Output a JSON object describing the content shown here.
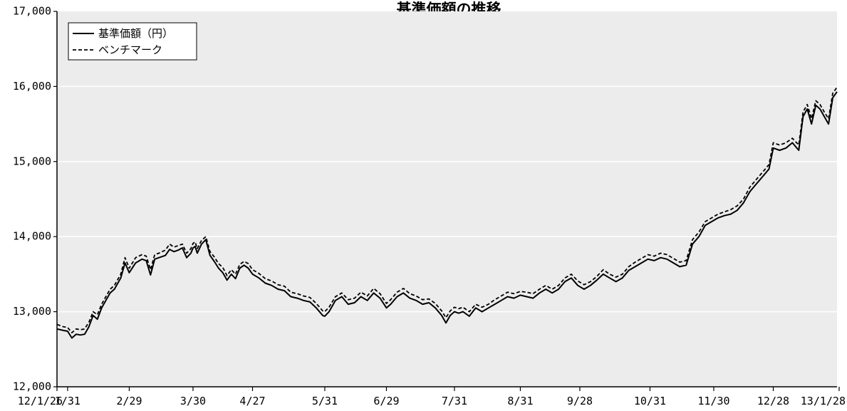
{
  "chart_data": {
    "type": "line",
    "title": "基準価額の推移",
    "xlabel": "",
    "ylabel": "",
    "ylim": [
      12000,
      17000
    ],
    "yticks": [
      "12,000",
      "13,000",
      "14,000",
      "15,000",
      "16,000",
      "17,000"
    ],
    "ytick_values": [
      12000,
      13000,
      14000,
      15000,
      16000,
      17000
    ],
    "xlim": [
      0,
      367
    ],
    "xticks": [
      {
        "label": "12/1/26",
        "day": 0
      },
      {
        "label": "1/31",
        "day": 5
      },
      {
        "label": "2/29",
        "day": 34
      },
      {
        "label": "3/30",
        "day": 64
      },
      {
        "label": "4/27",
        "day": 92
      },
      {
        "label": "5/31",
        "day": 126
      },
      {
        "label": "6/29",
        "day": 155
      },
      {
        "label": "7/31",
        "day": 187
      },
      {
        "label": "8/31",
        "day": 218
      },
      {
        "label": "9/28",
        "day": 246
      },
      {
        "label": "10/31",
        "day": 279
      },
      {
        "label": "11/30",
        "day": 309
      },
      {
        "label": "12/28",
        "day": 337
      },
      {
        "label": "13/1/28",
        "day": 368
      }
    ],
    "grid": true,
    "legend_position": "top-left",
    "background_color": "#ececec",
    "series": [
      {
        "name": "基準価額（円）",
        "style": "solid",
        "color": "#000000",
        "x": [
          0,
          3,
          5,
          7,
          9,
          11,
          13,
          15,
          17,
          19,
          21,
          23,
          25,
          27,
          30,
          32,
          34,
          37,
          40,
          42,
          44,
          46,
          48,
          51,
          53,
          55,
          57,
          59,
          61,
          63,
          64,
          65,
          66,
          68,
          70,
          72,
          74,
          76,
          78,
          80,
          82,
          84,
          86,
          88,
          90,
          92,
          95,
          98,
          101,
          104,
          107,
          110,
          113,
          116,
          119,
          122,
          125,
          126,
          128,
          131,
          134,
          137,
          140,
          143,
          146,
          149,
          152,
          155,
          157,
          160,
          163,
          166,
          169,
          172,
          175,
          178,
          181,
          183,
          185,
          187,
          189,
          191,
          194,
          197,
          200,
          203,
          206,
          209,
          212,
          215,
          218,
          221,
          224,
          227,
          230,
          233,
          236,
          239,
          242,
          245,
          248,
          251,
          254,
          257,
          260,
          263,
          266,
          269,
          272,
          275,
          278,
          281,
          284,
          287,
          290,
          293,
          296,
          299,
          302,
          305,
          308,
          311,
          314,
          317,
          320,
          323,
          326,
          329,
          332,
          335,
          337,
          340,
          343,
          346,
          349,
          351,
          353,
          355,
          357,
          359,
          361,
          363,
          365,
          367
        ],
        "y": [
          12770,
          12750,
          12740,
          12650,
          12700,
          12690,
          12700,
          12800,
          12950,
          12900,
          13050,
          13150,
          13250,
          13300,
          13450,
          13650,
          13520,
          13650,
          13700,
          13680,
          13490,
          13700,
          13720,
          13750,
          13830,
          13800,
          13820,
          13850,
          13720,
          13780,
          13850,
          13870,
          13780,
          13900,
          13960,
          13750,
          13670,
          13580,
          13520,
          13420,
          13500,
          13440,
          13580,
          13620,
          13580,
          13500,
          13450,
          13380,
          13350,
          13300,
          13280,
          13200,
          13180,
          13150,
          13130,
          13050,
          12950,
          12940,
          13000,
          13150,
          13200,
          13100,
          13120,
          13200,
          13150,
          13250,
          13180,
          13050,
          13100,
          13200,
          13250,
          13180,
          13150,
          13100,
          13120,
          13050,
          12950,
          12850,
          12950,
          13000,
          12980,
          13000,
          12940,
          13050,
          13000,
          13050,
          13100,
          13150,
          13200,
          13180,
          13220,
          13200,
          13180,
          13250,
          13300,
          13250,
          13300,
          13400,
          13450,
          13350,
          13300,
          13350,
          13420,
          13500,
          13450,
          13400,
          13450,
          13550,
          13600,
          13650,
          13700,
          13680,
          13720,
          13700,
          13650,
          13600,
          13620,
          13900,
          14000,
          14150,
          14200,
          14250,
          14280,
          14300,
          14350,
          14450,
          14600,
          14700,
          14800,
          14900,
          15180,
          15150,
          15180,
          15250,
          15150,
          15600,
          15700,
          15500,
          15750,
          15700,
          15600,
          15500,
          15850,
          15930
        ]
      },
      {
        "name": "ベンチマーク",
        "style": "dashed",
        "color": "#000000",
        "x": [
          0,
          3,
          5,
          7,
          9,
          11,
          13,
          15,
          17,
          19,
          21,
          23,
          25,
          27,
          30,
          32,
          34,
          37,
          40,
          42,
          44,
          46,
          48,
          51,
          53,
          55,
          57,
          59,
          61,
          63,
          64,
          65,
          66,
          68,
          70,
          72,
          74,
          76,
          78,
          80,
          82,
          84,
          86,
          88,
          90,
          92,
          95,
          98,
          101,
          104,
          107,
          110,
          113,
          116,
          119,
          122,
          125,
          126,
          128,
          131,
          134,
          137,
          140,
          143,
          146,
          149,
          152,
          155,
          157,
          160,
          163,
          166,
          169,
          172,
          175,
          178,
          181,
          183,
          185,
          187,
          189,
          191,
          194,
          197,
          200,
          203,
          206,
          209,
          212,
          215,
          218,
          221,
          224,
          227,
          230,
          233,
          236,
          239,
          242,
          245,
          248,
          251,
          254,
          257,
          260,
          263,
          266,
          269,
          272,
          275,
          278,
          281,
          284,
          287,
          290,
          293,
          296,
          299,
          302,
          305,
          308,
          311,
          314,
          317,
          320,
          323,
          326,
          329,
          332,
          335,
          337,
          340,
          343,
          346,
          349,
          351,
          353,
          355,
          357,
          359,
          361,
          363,
          365,
          367
        ],
        "y": [
          12830,
          12800,
          12790,
          12720,
          12770,
          12760,
          12770,
          12860,
          13000,
          12960,
          13100,
          13200,
          13300,
          13350,
          13500,
          13720,
          13580,
          13720,
          13760,
          13740,
          13560,
          13760,
          13780,
          13820,
          13900,
          13860,
          13880,
          13900,
          13780,
          13840,
          13910,
          13930,
          13840,
          13950,
          14000,
          13800,
          13730,
          13640,
          13590,
          13480,
          13560,
          13500,
          13630,
          13670,
          13640,
          13560,
          13510,
          13440,
          13410,
          13360,
          13340,
          13260,
          13240,
          13210,
          13190,
          13110,
          13010,
          13000,
          13060,
          13200,
          13250,
          13160,
          13180,
          13260,
          13210,
          13310,
          13240,
          13110,
          13160,
          13260,
          13310,
          13240,
          13210,
          13160,
          13170,
          13110,
          13010,
          12920,
          13010,
          13060,
          13040,
          13060,
          13000,
          13100,
          13060,
          13100,
          13160,
          13210,
          13260,
          13240,
          13270,
          13260,
          13240,
          13300,
          13350,
          13300,
          13350,
          13450,
          13500,
          13410,
          13360,
          13400,
          13470,
          13560,
          13500,
          13460,
          13500,
          13600,
          13660,
          13710,
          13760,
          13740,
          13780,
          13760,
          13710,
          13660,
          13680,
          13960,
          14060,
          14200,
          14250,
          14300,
          14330,
          14360,
          14410,
          14500,
          14660,
          14760,
          14860,
          14960,
          15250,
          15220,
          15250,
          15310,
          15220,
          15660,
          15760,
          15570,
          15810,
          15760,
          15660,
          15570,
          15910,
          15990
        ]
      }
    ]
  }
}
